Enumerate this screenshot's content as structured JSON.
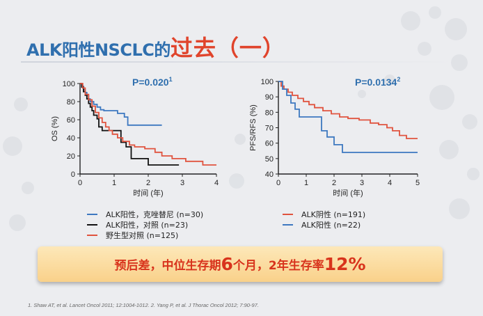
{
  "title": {
    "part1": "ALK阳性NSCLC的",
    "part2": "过去（一）"
  },
  "colors": {
    "title_blue": "#2f6fae",
    "title_red": "#e0442c",
    "blue": "#3d78c0",
    "black": "#111111",
    "red": "#e0533e",
    "banner_text": "#d8331c"
  },
  "chart_data": [
    {
      "type": "line",
      "ylabel": "OS (%)",
      "xlabel": "时间 (年)",
      "xlim": [
        0,
        4
      ],
      "ylim": [
        0,
        100
      ],
      "xticks": [
        0,
        1,
        2,
        3,
        4
      ],
      "yticks": [
        0,
        20,
        40,
        60,
        80,
        100
      ],
      "grid": false,
      "pvalue": "P=0.020",
      "pvalue_ref": "1",
      "series": [
        {
          "name": "ALK阳性，克唑替尼 (n=30)",
          "color": "#3d78c0",
          "x": [
            0,
            0.05,
            0.05,
            0.1,
            0.1,
            0.15,
            0.15,
            0.2,
            0.2,
            0.25,
            0.25,
            0.3,
            0.3,
            0.4,
            0.4,
            0.5,
            0.5,
            0.6,
            0.6,
            0.7,
            0.7,
            0.9,
            0.9,
            1.1,
            1.1,
            1.3,
            1.3,
            1.4,
            1.4,
            2.4
          ],
          "y": [
            100,
            100,
            97,
            97,
            93,
            93,
            90,
            90,
            87,
            87,
            83,
            83,
            80,
            80,
            77,
            77,
            74,
            74,
            71,
            71,
            70,
            70,
            70,
            70,
            67,
            67,
            63,
            63,
            54,
            54
          ]
        },
        {
          "name": "ALK阳性，对照 (n=23)",
          "color": "#111111",
          "x": [
            0,
            0.05,
            0.05,
            0.1,
            0.1,
            0.15,
            0.15,
            0.2,
            0.2,
            0.25,
            0.25,
            0.3,
            0.3,
            0.35,
            0.35,
            0.4,
            0.4,
            0.5,
            0.5,
            0.55,
            0.55,
            0.65,
            0.65,
            0.85,
            0.85,
            1.2,
            1.2,
            1.35,
            1.35,
            1.5,
            1.5,
            1.8,
            1.8,
            2.0,
            2.0,
            2.9
          ],
          "y": [
            100,
            100,
            96,
            96,
            91,
            91,
            87,
            87,
            83,
            83,
            78,
            78,
            74,
            74,
            70,
            70,
            65,
            65,
            61,
            61,
            52,
            52,
            48,
            48,
            48,
            48,
            35,
            35,
            30,
            30,
            17,
            17,
            17,
            17,
            10,
            10
          ]
        },
        {
          "name": "野生型对照 (n=125)",
          "color": "#e0533e",
          "x": [
            0,
            0.08,
            0.08,
            0.15,
            0.15,
            0.25,
            0.25,
            0.35,
            0.35,
            0.45,
            0.45,
            0.55,
            0.55,
            0.65,
            0.65,
            0.75,
            0.75,
            0.85,
            0.85,
            0.95,
            0.95,
            1.1,
            1.1,
            1.25,
            1.25,
            1.45,
            1.45,
            1.6,
            1.6,
            1.9,
            1.9,
            2.2,
            2.2,
            2.4,
            2.4,
            2.7,
            2.7,
            3.1,
            3.1,
            3.6,
            3.6,
            4.0
          ],
          "y": [
            100,
            100,
            95,
            95,
            88,
            88,
            82,
            82,
            75,
            75,
            68,
            68,
            62,
            62,
            57,
            57,
            52,
            52,
            48,
            48,
            44,
            44,
            40,
            40,
            36,
            36,
            32,
            32,
            30,
            30,
            28,
            28,
            24,
            24,
            20,
            20,
            17,
            17,
            14,
            14,
            10,
            10
          ]
        }
      ]
    },
    {
      "type": "line",
      "ylabel": "PFS/RFS (%)",
      "xlabel": "时间 (年)",
      "xlim": [
        0,
        5
      ],
      "ylim": [
        40,
        100
      ],
      "xticks": [
        0,
        1,
        2,
        3,
        4,
        5
      ],
      "yticks": [
        40,
        50,
        60,
        70,
        80,
        90,
        100
      ],
      "grid": false,
      "pvalue": "P=0.0134",
      "pvalue_ref": "2",
      "series": [
        {
          "name": "ALK阴性 (n=191)",
          "color": "#e0533e",
          "x": [
            0,
            0.1,
            0.1,
            0.2,
            0.2,
            0.35,
            0.35,
            0.5,
            0.5,
            0.7,
            0.7,
            0.9,
            0.9,
            1.1,
            1.1,
            1.3,
            1.3,
            1.6,
            1.6,
            1.9,
            1.9,
            2.2,
            2.2,
            2.5,
            2.5,
            2.9,
            2.9,
            3.3,
            3.3,
            3.6,
            3.6,
            3.9,
            3.9,
            4.1,
            4.1,
            4.35,
            4.35,
            4.6,
            4.6,
            5.0
          ],
          "y": [
            100,
            100,
            97,
            97,
            95,
            95,
            93,
            93,
            91,
            91,
            89,
            89,
            87,
            87,
            85,
            85,
            83,
            83,
            81,
            81,
            79,
            79,
            77,
            77,
            76,
            76,
            75,
            75,
            73,
            73,
            72,
            72,
            70,
            70,
            68,
            68,
            65,
            65,
            63,
            63
          ]
        },
        {
          "name": "ALK阳性 (n=22)",
          "color": "#3d78c0",
          "x": [
            0,
            0.15,
            0.15,
            0.3,
            0.3,
            0.45,
            0.45,
            0.6,
            0.6,
            0.75,
            0.75,
            1.55,
            1.55,
            1.75,
            1.75,
            2.0,
            2.0,
            2.3,
            2.3,
            5.0
          ],
          "y": [
            100,
            100,
            95,
            95,
            91,
            91,
            86,
            86,
            82,
            82,
            77,
            77,
            68,
            68,
            64,
            64,
            59,
            59,
            54,
            54
          ]
        }
      ]
    }
  ],
  "banner": {
    "part1": "预后差，中位生存期",
    "num1": "6",
    "part2": "个月，",
    "part3": "2年生存率",
    "num2": "12%"
  },
  "footnote": "1. Shaw AT, et al. Lancet Oncol 2011; 12:1004-1012. 2. Yang P, et al. J Thorac Oncol 2012; 7:90-97."
}
